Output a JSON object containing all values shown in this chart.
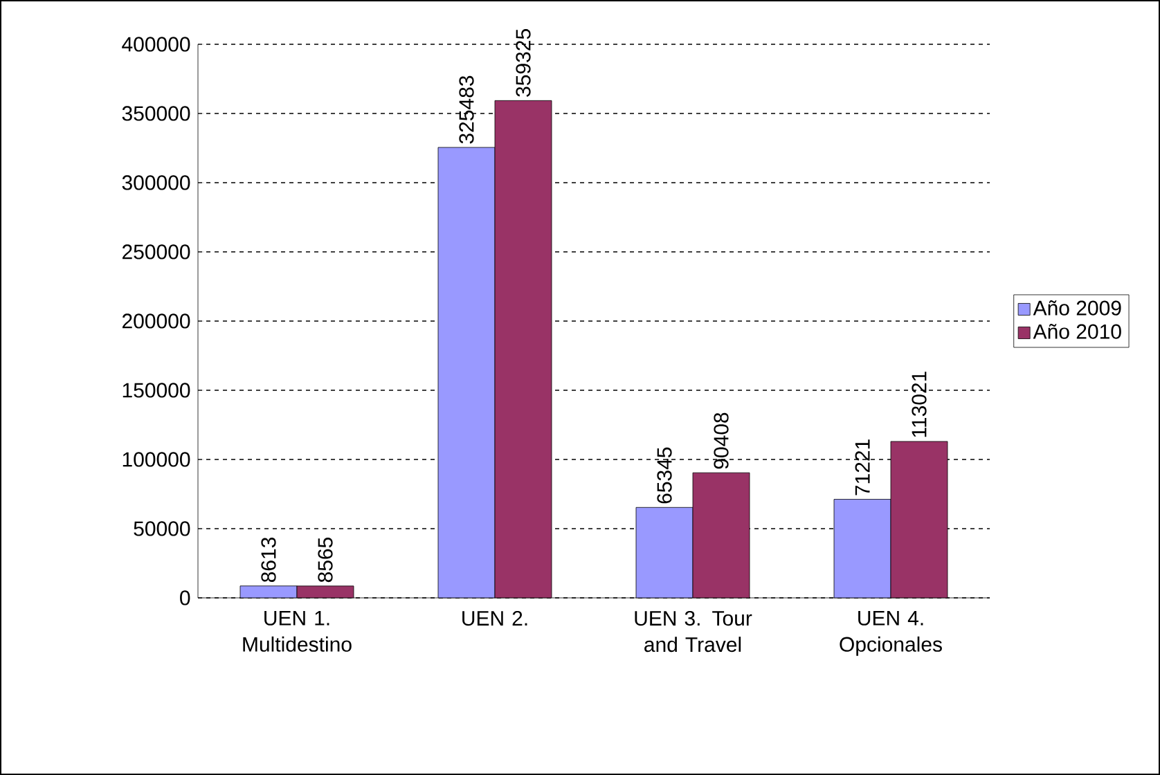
{
  "chart_data": {
    "type": "bar",
    "categories": [
      "UEN 1. Multidestino",
      "UEN 2.",
      "UEN 3. Tour and Travel",
      "UEN 4. Opcionales"
    ],
    "series": [
      {
        "name": "Año 2009",
        "color": "#9999ff",
        "values": [
          8613,
          325483,
          65345,
          71221
        ]
      },
      {
        "name": "Año 2010",
        "color": "#993366",
        "values": [
          8565,
          359325,
          90408,
          113021
        ]
      }
    ],
    "ylim": [
      0,
      400000
    ],
    "yticks": [
      0,
      50000,
      100000,
      150000,
      200000,
      250000,
      300000,
      350000,
      400000
    ],
    "grid": "y",
    "legend": "right",
    "data_labels": true
  }
}
